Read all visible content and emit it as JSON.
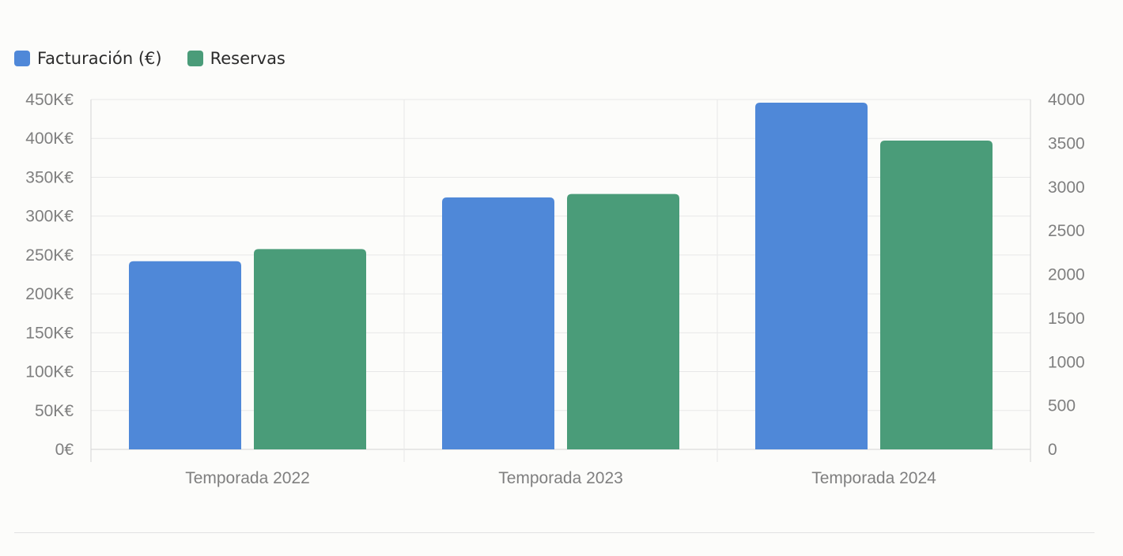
{
  "chart_data": {
    "type": "bar",
    "categories": [
      "Temporada 2022",
      "Temporada 2023",
      "Temporada 2024"
    ],
    "series": [
      {
        "name": "Facturación (€)",
        "values": [
          242000,
          324000,
          446000
        ],
        "color": "#4f88d8",
        "axis": "left"
      },
      {
        "name": "Reservas",
        "values": [
          2290,
          2920,
          3530
        ],
        "color": "#4a9c79",
        "axis": "right"
      }
    ],
    "y_left": {
      "ylim": [
        0,
        450000
      ],
      "ticks": [
        {
          "value": 450000,
          "label": "450K€"
        },
        {
          "value": 400000,
          "label": "400K€"
        },
        {
          "value": 350000,
          "label": "350K€"
        },
        {
          "value": 300000,
          "label": "300K€"
        },
        {
          "value": 250000,
          "label": "250K€"
        },
        {
          "value": 200000,
          "label": "200K€"
        },
        {
          "value": 150000,
          "label": "150K€"
        },
        {
          "value": 100000,
          "label": "100K€"
        },
        {
          "value": 50000,
          "label": "50K€"
        },
        {
          "value": 0,
          "label": "0€"
        }
      ]
    },
    "y_right": {
      "ylim": [
        0,
        4000
      ],
      "ticks": [
        {
          "value": 4000,
          "label": "4000"
        },
        {
          "value": 3500,
          "label": "3500"
        },
        {
          "value": 3000,
          "label": "3000"
        },
        {
          "value": 2500,
          "label": "2500"
        },
        {
          "value": 2000,
          "label": "2000"
        },
        {
          "value": 1500,
          "label": "1500"
        },
        {
          "value": 1000,
          "label": "1000"
        },
        {
          "value": 500,
          "label": "500"
        },
        {
          "value": 0,
          "label": "0"
        }
      ]
    },
    "grid": true,
    "legend_position": "top-left"
  }
}
